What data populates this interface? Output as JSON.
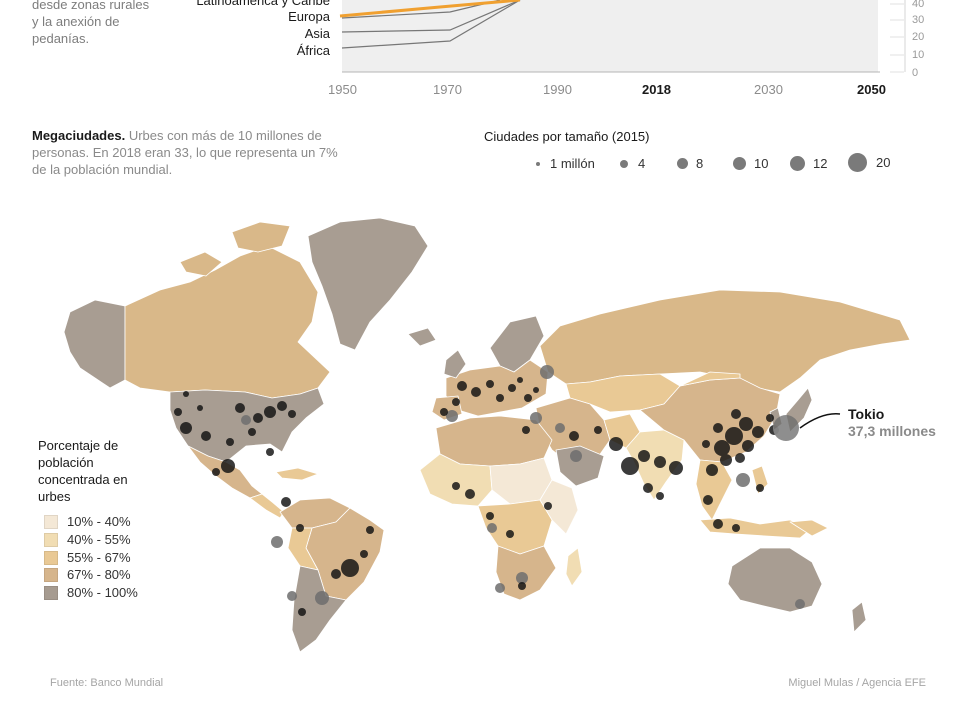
{
  "intro": {
    "line1": "desde zonas rurales",
    "line2": "y la anexión de",
    "line3": "pedanías."
  },
  "region_labels": [
    "Latinoamérica y Caribe",
    "Europa",
    "Asia",
    "África"
  ],
  "x_ticks": [
    {
      "label": "1950",
      "bold": false
    },
    {
      "label": "1970",
      "bold": false
    },
    {
      "label": "1990",
      "bold": false
    },
    {
      "label": "2018",
      "bold": true
    },
    {
      "label": "2030",
      "bold": false
    },
    {
      "label": "2050",
      "bold": true
    }
  ],
  "y_ticks": [
    "40",
    "30",
    "20",
    "10",
    "0"
  ],
  "megacities": {
    "title": "Megaciudades.",
    "text": " Urbes con más de 10 millones de personas. En 2018 eran 33, lo que representa un 7% de la población mundial."
  },
  "size_legend": {
    "title": "Ciudades por tamaño (2015)",
    "items": [
      "1 millón",
      "4",
      "8",
      "10",
      "12",
      "20"
    ]
  },
  "urban_legend": {
    "title": "Porcentaje de población concentrada en urbes",
    "items": [
      {
        "label": "10% - 40%",
        "color": "#f4e8d6"
      },
      {
        "label": "40% - 55%",
        "color": "#f1ddb3"
      },
      {
        "label": "55% - 67%",
        "color": "#e9c995"
      },
      {
        "label": "67% - 80%",
        "color": "#d6b58c"
      },
      {
        "label": "80% - 100%",
        "color": "#a69b90"
      }
    ]
  },
  "callout": {
    "city": "Tokio",
    "value": "37,3 millones"
  },
  "footer": {
    "source": "Fuente: Banco Mundial",
    "credit": "Miguel Mulas / Agencia EFE"
  },
  "colors": {
    "accent": "#f0a030",
    "land_default": "#d9b889",
    "land_high": "#a89d92",
    "city_dark": "#111111",
    "city_gray": "#6e6e6e"
  }
}
